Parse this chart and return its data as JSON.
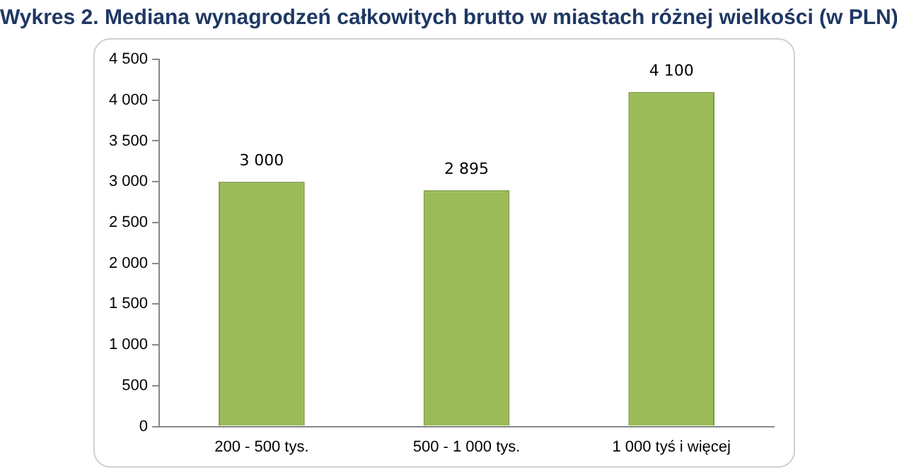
{
  "chart_data": {
    "type": "bar",
    "title": "Wykres 2. Mediana wynagrodzeń całkowitych brutto w miastach różnej wielkości (w PLN)",
    "categories": [
      "200 - 500 tys.",
      "500 - 1 000 tys.",
      "1 000 tyś i więcej"
    ],
    "values": [
      3000,
      2895,
      4100
    ],
    "color": "#9bbb59",
    "value_labels": [
      "3 000",
      "2 895",
      "4 100"
    ],
    "ylim": [
      0,
      4500
    ],
    "yticks": [
      0,
      {
        "value": 500,
        "label": "500"
      },
      {
        "value": 1000,
        "label": "1 000"
      },
      {
        "value": 1500,
        "label": "1 500"
      },
      {
        "value": 2000,
        "label": "2 000"
      },
      {
        "value": 2500,
        "label": "2 500"
      },
      {
        "value": 3000,
        "label": "3 000"
      },
      {
        "value": 3500,
        "label": "3 500"
      },
      {
        "value": 4000,
        "label": "4 000"
      },
      {
        "value": 4500,
        "label": "4 500"
      }
    ],
    "grid": false,
    "legend": false
  }
}
